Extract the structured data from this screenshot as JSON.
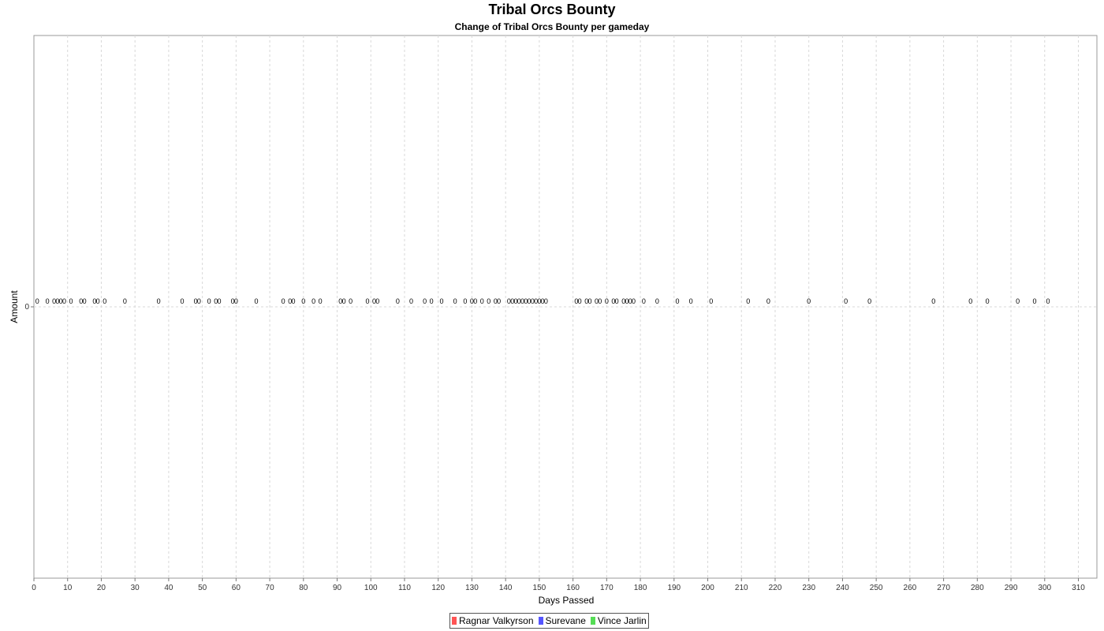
{
  "chart_data": {
    "type": "scatter",
    "title": "Tribal Orcs Bounty",
    "subtitle": "Change of Tribal Orcs Bounty per gameday",
    "xlabel": "Days Passed",
    "ylabel": "Amount",
    "xlim": [
      0,
      315.5
    ],
    "ylim": [
      -1,
      1
    ],
    "x_ticks": [
      0,
      10,
      20,
      30,
      40,
      50,
      60,
      70,
      80,
      90,
      100,
      110,
      120,
      130,
      140,
      150,
      160,
      170,
      180,
      190,
      200,
      210,
      220,
      230,
      240,
      250,
      260,
      270,
      280,
      290,
      300,
      310
    ],
    "y_ticks": [
      0
    ],
    "grid": true,
    "legend_position": "bottom-center",
    "series": [
      {
        "name": "Ragnar Valkyrson",
        "color": "#ff5555"
      },
      {
        "name": "Surevane",
        "color": "#5555ff"
      },
      {
        "name": "Vince Jarlin",
        "color": "#55dd55"
      }
    ],
    "points": {
      "x": [
        1,
        4,
        6,
        7,
        8,
        9,
        11,
        14,
        15,
        18,
        19,
        21,
        27,
        37,
        44,
        48,
        49,
        52,
        54,
        55,
        59,
        60,
        66,
        74,
        76,
        77,
        80,
        83,
        85,
        91,
        92,
        94,
        99,
        101,
        102,
        108,
        112,
        116,
        118,
        121,
        125,
        128,
        130,
        131,
        133,
        135,
        137,
        138,
        141,
        142,
        143,
        144,
        145,
        146,
        147,
        148,
        149,
        150,
        151,
        152,
        161,
        162,
        164,
        165,
        167,
        168,
        170,
        172,
        173,
        175,
        176,
        177,
        178,
        181,
        185,
        191,
        195,
        201,
        212,
        218,
        230,
        241,
        248,
        267,
        278,
        283,
        292,
        297,
        301
      ],
      "y": 0,
      "label": "0"
    }
  }
}
